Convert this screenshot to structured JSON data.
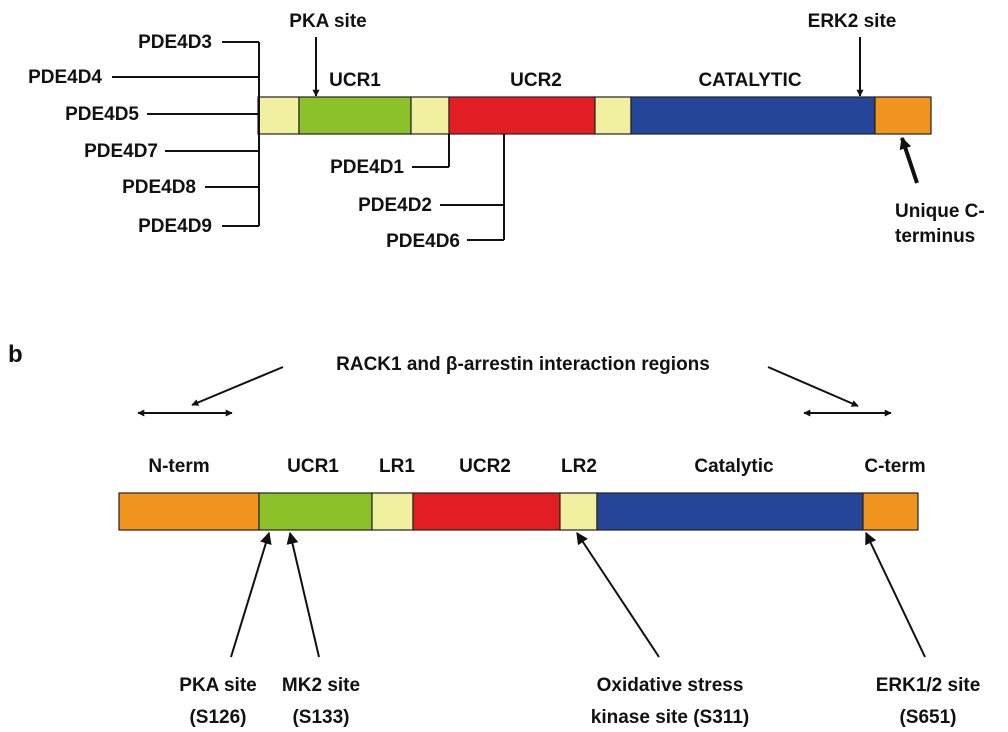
{
  "colors": {
    "ucr1": "#8cc12a",
    "ucr2": "#e31d24",
    "catalytic": "#254698",
    "linker": "#f0f0a0",
    "terminus": "#f29420",
    "outline": "#222222"
  },
  "panel_a": {
    "left_isoforms": [
      "PDE4D3",
      "PDE4D4",
      "PDE4D5",
      "PDE4D7",
      "PDE4D8",
      "PDE4D9"
    ],
    "mid_isoforms": [
      "PDE4D1",
      "PDE4D2",
      "PDE4D6"
    ],
    "pka_site": "PKA site",
    "erk2_site": "ERK2 site",
    "ucr1": "UCR1",
    "ucr2": "UCR2",
    "catalytic": "CATALYTIC",
    "c_terminus_line1": "Unique C-",
    "c_terminus_line2": "terminus"
  },
  "panel_b": {
    "letter": "b",
    "interaction_label": "RACK1 and β-arrestin interaction regions",
    "domains": [
      "N-term",
      "UCR1",
      "LR1",
      "UCR2",
      "LR2",
      "Catalytic",
      "C-term"
    ],
    "sites": [
      {
        "line1": "PKA site",
        "line2": "(S126)"
      },
      {
        "line1": "MK2 site",
        "line2": "(S133)"
      },
      {
        "line1": "Oxidative stress",
        "line2": "kinase site (S311)"
      },
      {
        "line1": "ERK1/2 site",
        "line2": "(S651)"
      }
    ]
  }
}
